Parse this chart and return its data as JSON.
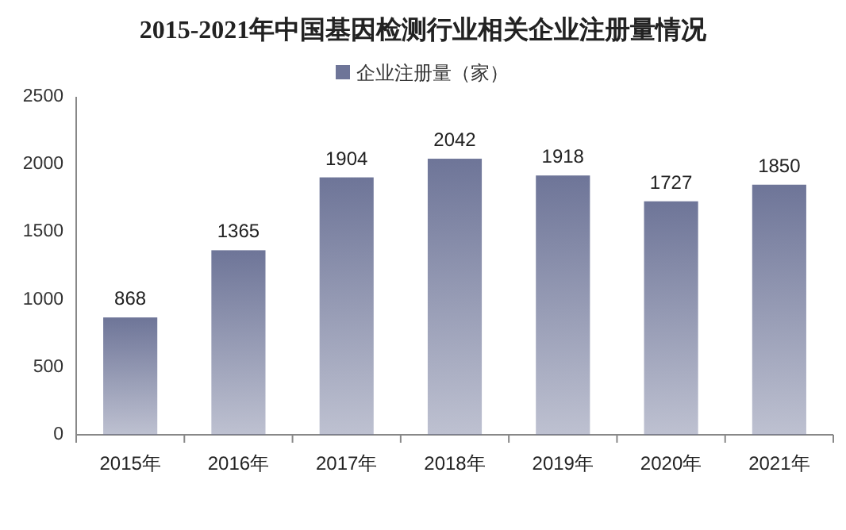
{
  "chart_data": {
    "type": "bar",
    "title": "2015-2021年中国基因检测行业相关企业注册量情况",
    "categories": [
      "2015年",
      "2016年",
      "2017年",
      "2018年",
      "2019年",
      "2020年",
      "2021年"
    ],
    "series": [
      {
        "name": "企业注册量（家）",
        "color": "#6e7598",
        "values": [
          868,
          1365,
          1904,
          2042,
          1918,
          1727,
          1850
        ]
      }
    ],
    "ylim": [
      0,
      2500
    ],
    "yticks": [
      0,
      500,
      1000,
      1500,
      2000,
      2500
    ],
    "data_labels": true,
    "legend": "top",
    "grid": false
  }
}
